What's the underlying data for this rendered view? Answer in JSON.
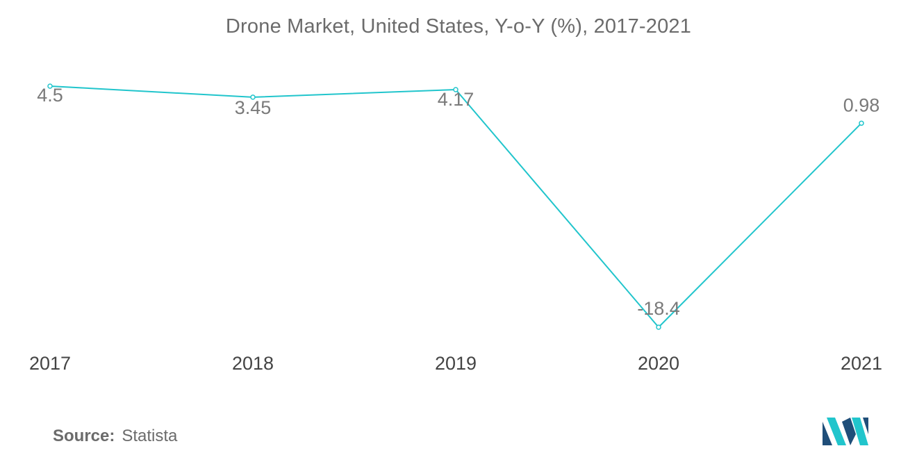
{
  "chart_data": {
    "type": "line",
    "title": "Drone Market, United States, Y-o-Y (%), 2017-2021",
    "categories": [
      "2017",
      "2018",
      "2019",
      "2020",
      "2021"
    ],
    "series": [
      {
        "values": [
          4.5,
          3.45,
          4.17,
          -18.4,
          0.98
        ],
        "labels": [
          "4.5",
          "3.45",
          "4.17",
          "-18.4",
          "0.98"
        ]
      }
    ],
    "ylim": [
      -18.4,
      4.5
    ],
    "grid": false,
    "line_color": "#21c5cc"
  },
  "source": {
    "label": "Source:",
    "value": "Statista"
  },
  "logo": {
    "icon": "mordor-intelligence-logo-icon",
    "colors": [
      "#1f4e79",
      "#21c5cc"
    ]
  }
}
